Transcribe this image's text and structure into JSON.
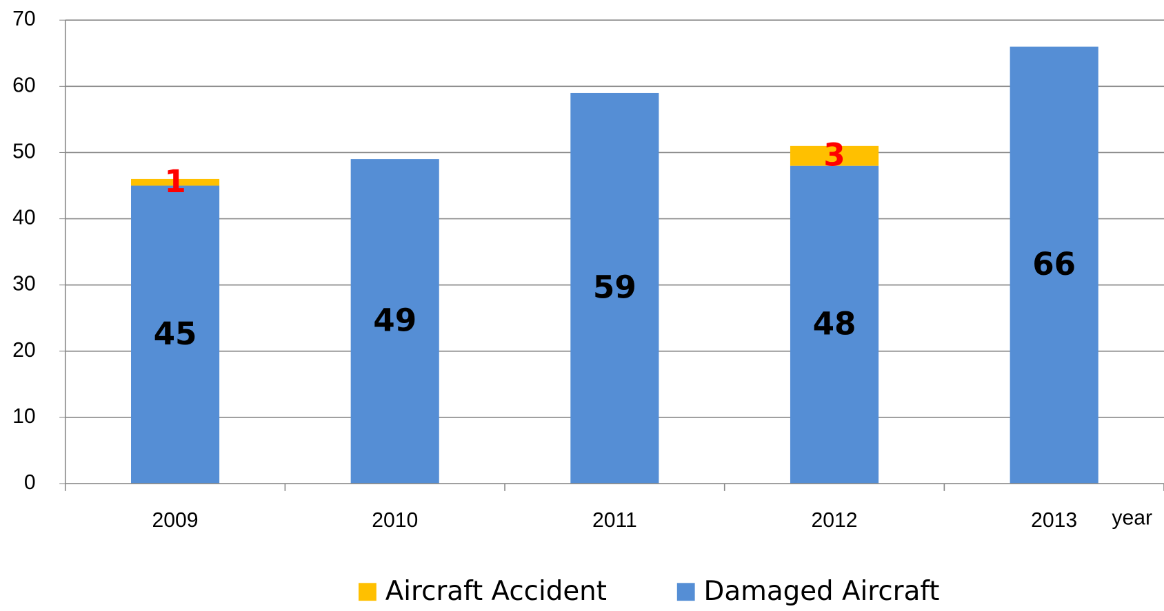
{
  "chart_data": {
    "type": "stacked_bar",
    "x_label": "year",
    "categories": [
      "2009",
      "2010",
      "2011",
      "2012",
      "2013"
    ],
    "series": [
      {
        "name": "Aircraft Accident",
        "color": "#ffc000",
        "label_color": "#ff0000",
        "values": [
          1,
          0,
          0,
          3,
          0
        ]
      },
      {
        "name": "Damaged Aircraft",
        "color": "#558ed5",
        "label_color": "#000000",
        "values": [
          45,
          49,
          59,
          48,
          66
        ]
      }
    ],
    "ylim": [
      0,
      70
    ],
    "yticks": [
      0,
      10,
      20,
      30,
      40,
      50,
      60,
      70
    ],
    "grid": true,
    "legend": "bottom"
  }
}
